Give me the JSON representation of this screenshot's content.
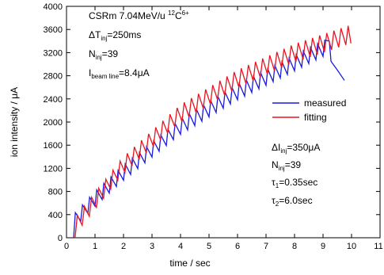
{
  "chart_data": {
    "type": "line",
    "xlabel": "time / sec",
    "ylabel": "ion intensity / μA",
    "xlim": [
      0,
      11
    ],
    "xticks": [
      0,
      1,
      2,
      3,
      4,
      5,
      6,
      7,
      8,
      9,
      10,
      11
    ],
    "ylim": [
      0,
      4000
    ],
    "yticks": [
      0,
      400,
      800,
      1200,
      1600,
      2000,
      2400,
      2800,
      3200,
      3600,
      4000
    ],
    "legend": "center right",
    "series": [
      {
        "name": "measured",
        "color": "#1a1adc",
        "x": [
          0.25,
          0.31,
          0.5,
          0.56,
          0.75,
          0.81,
          1.0,
          1.06,
          1.25,
          1.31,
          1.5,
          1.56,
          1.75,
          1.81,
          2.0,
          2.06,
          2.25,
          2.31,
          2.5,
          2.56,
          2.75,
          2.81,
          3.0,
          3.06,
          3.25,
          3.31,
          3.5,
          3.56,
          3.75,
          3.81,
          4.0,
          4.06,
          4.25,
          4.31,
          4.5,
          4.56,
          4.75,
          4.81,
          5.0,
          5.06,
          5.25,
          5.31,
          5.5,
          5.56,
          5.75,
          5.81,
          6.0,
          6.06,
          6.25,
          6.31,
          6.5,
          6.56,
          6.75,
          6.81,
          7.0,
          7.06,
          7.25,
          7.31,
          7.5,
          7.56,
          7.75,
          7.81,
          8.0,
          8.06,
          8.25,
          8.31,
          8.5,
          8.56,
          8.75,
          8.81,
          9.0,
          9.06,
          9.22,
          9.28,
          9.5,
          9.75
        ],
        "values": [
          0,
          435,
          288,
          568,
          420,
          700,
          547,
          827,
          660,
          940,
          772,
          1052,
          885,
          1165,
          994,
          1274,
          1094,
          1374,
          1194,
          1474,
          1294,
          1574,
          1394,
          1674,
          1494,
          1774,
          1594,
          1874,
          1694,
          1974,
          1788,
          2068,
          1863,
          2143,
          1938,
          2218,
          2013,
          2293,
          2088,
          2368,
          2163,
          2443,
          2238,
          2518,
          2313,
          2593,
          2385,
          2665,
          2448,
          2728,
          2510,
          2790,
          2573,
          2853,
          2635,
          2915,
          2698,
          2978,
          2760,
          3040,
          2823,
          3103,
          2885,
          3165,
          2948,
          3228,
          3010,
          3290,
          3073,
          3353,
          3135,
          3415,
          3400,
          3050,
          2900,
          2720
        ]
      },
      {
        "name": "fitting",
        "color": "#e8141e",
        "x": [
          0.3,
          0.38,
          0.55,
          0.63,
          0.8,
          0.88,
          1.05,
          1.13,
          1.3,
          1.38,
          1.55,
          1.63,
          1.8,
          1.88,
          2.05,
          2.13,
          2.3,
          2.38,
          2.55,
          2.63,
          2.8,
          2.88,
          3.05,
          3.13,
          3.3,
          3.38,
          3.55,
          3.63,
          3.8,
          3.88,
          4.05,
          4.13,
          4.3,
          4.38,
          4.55,
          4.63,
          4.8,
          4.88,
          5.05,
          5.13,
          5.3,
          5.38,
          5.55,
          5.63,
          5.8,
          5.88,
          6.05,
          6.13,
          6.3,
          6.38,
          6.55,
          6.63,
          6.8,
          6.88,
          7.05,
          7.13,
          7.3,
          7.38,
          7.55,
          7.63,
          7.8,
          7.88,
          8.05,
          8.13,
          8.3,
          8.38,
          8.55,
          8.63,
          8.8,
          8.88,
          9.05,
          9.13,
          9.3,
          9.38,
          9.55,
          9.63,
          9.8,
          9.88,
          9.98
        ],
        "values": [
          0,
          390,
          214,
          544,
          370,
          700,
          526,
          856,
          683,
          1013,
          839,
          1169,
          995,
          1325,
          1129,
          1459,
          1241,
          1571,
          1354,
          1684,
          1466,
          1796,
          1579,
          1909,
          1691,
          2021,
          1804,
          2134,
          1916,
          2246,
          2009,
          2339,
          2084,
          2414,
          2159,
          2489,
          2234,
          2564,
          2309,
          2639,
          2384,
          2714,
          2459,
          2789,
          2534,
          2864,
          2599,
          2929,
          2656,
          2986,
          2712,
          3042,
          2768,
          3098,
          2824,
          3154,
          2881,
          3211,
          2937,
          3267,
          2993,
          3323,
          3042,
          3372,
          3083,
          3413,
          3125,
          3455,
          3167,
          3497,
          3208,
          3538,
          3250,
          3580,
          3292,
          3622,
          3333,
          3663,
          3360
        ]
      }
    ],
    "annotations": [
      {
        "parts": [
          {
            "text": "CSRm 7.04MeV/u "
          },
          {
            "text": "12",
            "shift": "super"
          },
          {
            "text": "C"
          },
          {
            "text": "6+",
            "shift": "super"
          }
        ]
      },
      {
        "parts": [
          {
            "text": "ΔT"
          },
          {
            "text": "inj",
            "shift": "sub"
          },
          {
            "text": "=250ms"
          }
        ]
      },
      {
        "parts": [
          {
            "text": "N"
          },
          {
            "text": "inj",
            "shift": "sub"
          },
          {
            "text": "=39"
          }
        ]
      },
      {
        "parts": [
          {
            "text": "I"
          },
          {
            "text": "beam line",
            "shift": "sub"
          },
          {
            "text": "=8.4μA"
          }
        ]
      },
      {
        "parts": [
          {
            "text": "ΔI"
          },
          {
            "text": "inj",
            "shift": "sub"
          },
          {
            "text": "=350μA"
          }
        ]
      },
      {
        "parts": [
          {
            "text": "N"
          },
          {
            "text": "inj",
            "shift": "sub"
          },
          {
            "text": "=39"
          }
        ]
      },
      {
        "parts": [
          {
            "text": "τ"
          },
          {
            "text": "1",
            "shift": "sub"
          },
          {
            "text": "=0.35sec"
          }
        ]
      },
      {
        "parts": [
          {
            "text": "τ"
          },
          {
            "text": "2",
            "shift": "sub"
          },
          {
            "text": "=6.0sec"
          }
        ]
      }
    ]
  }
}
